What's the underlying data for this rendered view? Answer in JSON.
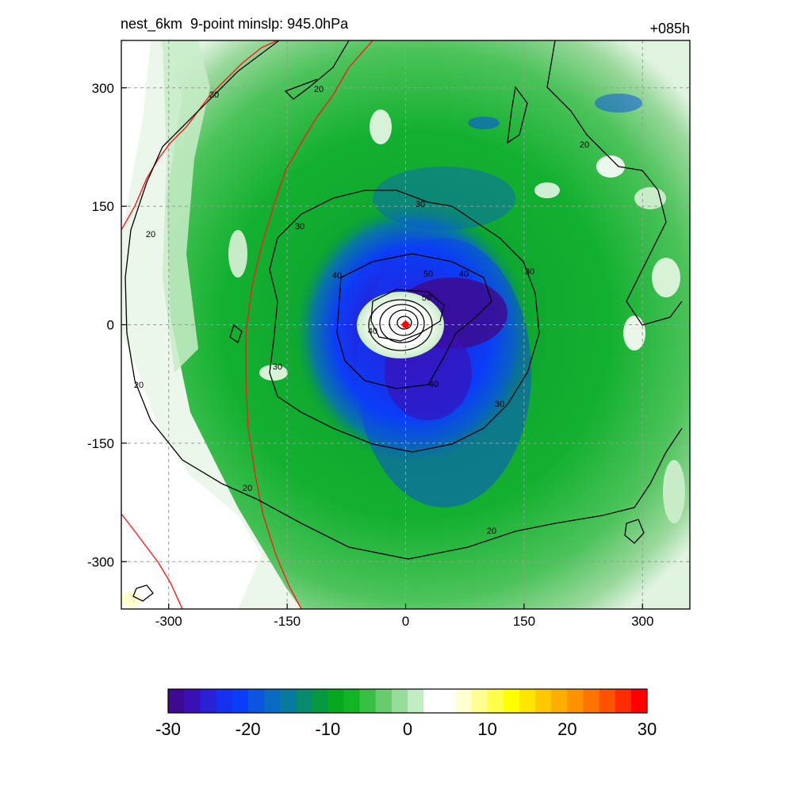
{
  "title": {
    "left": "nest_6km  9-point minslp: 945.0hPa",
    "right": "+085h"
  },
  "chart_data": {
    "type": "heatmap",
    "x_ticks": [
      -300,
      -150,
      0,
      150,
      300
    ],
    "y_ticks": [
      300,
      150,
      0,
      -150,
      -300
    ],
    "xlim": [
      -360,
      360
    ],
    "ylim": [
      -360,
      360
    ],
    "grid": true,
    "colorbar": {
      "ticks": [
        -30,
        -20,
        -10,
        0,
        10,
        20,
        30
      ],
      "range": [
        -30,
        30
      ],
      "colors": [
        "#3d0a8f",
        "#3a0fb5",
        "#2a1fd6",
        "#1530f0",
        "#0b3df8",
        "#0b55e0",
        "#0a69c0",
        "#097a9e",
        "#078a6c",
        "#06993f",
        "#06a81f",
        "#13b423",
        "#3abf45",
        "#66cc6c",
        "#96dc9a",
        "#c2ecc4",
        "#ffffff",
        "#ffffff",
        "#ffffd0",
        "#ffff90",
        "#ffff4a",
        "#ffff00",
        "#ffe400",
        "#ffc800",
        "#ffad00",
        "#ff9200",
        "#ff7400",
        "#ff5200",
        "#ff2c00",
        "#ff0000"
      ]
    },
    "wind_contours": [
      {
        "level": 20,
        "labels": [
          "20",
          "20",
          "20",
          "20",
          "20",
          "20",
          "20"
        ]
      },
      {
        "level": 30,
        "labels": [
          "30",
          "30",
          "30",
          "30",
          "30"
        ]
      },
      {
        "level": 40,
        "labels": [
          "40",
          "40",
          "40",
          "40"
        ]
      },
      {
        "level": 50,
        "labels": [
          "50",
          "50"
        ]
      }
    ],
    "storm_center": {
      "x": 0,
      "y": 0
    }
  }
}
